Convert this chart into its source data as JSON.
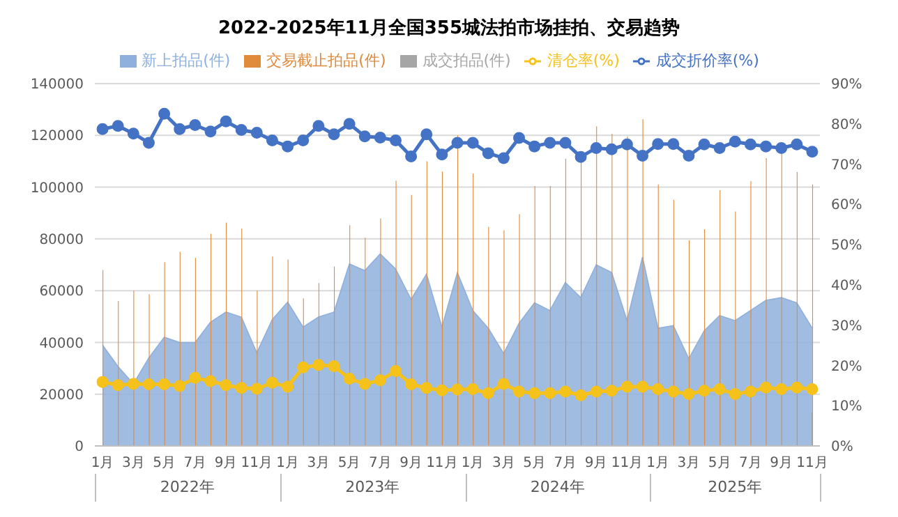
{
  "chart_data": {
    "type": "bar",
    "title": "2022-2025年11月全国355城法拍市场挂拍、交易趋势",
    "categories": [
      "1月",
      null,
      "3月",
      null,
      "5月",
      null,
      "7月",
      null,
      "9月",
      null,
      "11月",
      null,
      "1月",
      null,
      "3月",
      null,
      "5月",
      null,
      "7月",
      null,
      "9月",
      null,
      "11月",
      null,
      "1月",
      null,
      "3月",
      null,
      "5月",
      null,
      "7月",
      null,
      "9月",
      null,
      "11月",
      null,
      "1月",
      null,
      "3月",
      null,
      "5月",
      null,
      "7月",
      null,
      "9月",
      null,
      "11月"
    ],
    "annotations": [
      "2022年",
      "2023年",
      "2024年",
      "2025年"
    ],
    "series": [
      {
        "name": "新上拍品(件)",
        "type": "area",
        "color": "#8fb0dc",
        "values": [
          39000,
          30700,
          24000,
          34000,
          42000,
          40000,
          40000,
          47800,
          51700,
          49800,
          36000,
          48800,
          55600,
          45900,
          49800,
          51700,
          70300,
          67800,
          74200,
          68300,
          56600,
          66400,
          45900,
          67000,
          52300,
          45500,
          35700,
          47400,
          55300,
          52300,
          63100,
          57300,
          70000,
          67000,
          48400,
          73000,
          45500,
          46500,
          33700,
          44500,
          50400,
          48400,
          52300,
          56300,
          57300,
          55300,
          45500
        ]
      },
      {
        "name": "交易截止拍品(件)",
        "color": "#e08a3c",
        "values": [
          68000,
          56000,
          60000,
          58600,
          71000,
          75000,
          72600,
          82000,
          86300,
          84000,
          60000,
          73200,
          72000,
          57000,
          62900,
          69300,
          85300,
          80400,
          87900,
          102500,
          97000,
          110000,
          106000,
          120000,
          105300,
          84700,
          83300,
          89600,
          100400,
          100400,
          111000,
          110200,
          123500,
          120600,
          119600,
          126300,
          101000,
          95100,
          79400,
          83700,
          98800,
          90600,
          102400,
          111200,
          113000,
          105900,
          101000
        ]
      },
      {
        "name": "成交拍品(件)",
        "color": "#a6a6a6",
        "values": [
          null,
          null,
          null,
          null,
          null,
          null,
          null,
          null,
          null,
          null,
          null,
          null,
          null,
          null,
          null,
          null,
          null,
          null,
          null,
          null,
          null,
          null,
          null,
          null,
          null,
          null,
          null,
          null,
          null,
          null,
          null,
          null,
          null,
          null,
          null,
          null,
          null,
          null,
          null,
          null,
          null,
          null,
          null,
          null,
          null,
          null,
          13000
        ]
      },
      {
        "name": "清仓率(%)",
        "type": "line",
        "axis": "y2",
        "marker": "circle",
        "color": "#f5c21b",
        "values": [
          15.9,
          15.1,
          15.4,
          15.3,
          15.3,
          14.9,
          16.9,
          16.1,
          15.1,
          14.4,
          14.2,
          15.7,
          14.7,
          19.5,
          20.1,
          19.8,
          16.7,
          15.4,
          16.3,
          18.6,
          15.3,
          14.4,
          13.8,
          14.0,
          14.1,
          13.1,
          15.4,
          13.5,
          13.1,
          13.1,
          13.5,
          12.6,
          13.5,
          13.7,
          14.7,
          14.7,
          14.1,
          13.5,
          12.9,
          13.7,
          14.1,
          12.9,
          13.5,
          14.5,
          14.1,
          14.5,
          14.1
        ]
      },
      {
        "name": "成交折价率(%)",
        "type": "line",
        "axis": "y2",
        "marker": "circle",
        "color": "#4472c4",
        "values": [
          78.7,
          79.5,
          77.6,
          75.3,
          82.5,
          78.7,
          79.7,
          78.1,
          80.6,
          78.5,
          77.8,
          75.9,
          74.4,
          75.9,
          79.5,
          77.4,
          80.0,
          76.9,
          76.6,
          75.9,
          71.9,
          77.4,
          72.4,
          75.3,
          75.3,
          72.7,
          71.5,
          76.5,
          74.4,
          75.3,
          75.3,
          71.8,
          74.0,
          73.7,
          74.9,
          72.1,
          75.0,
          75.0,
          72.1,
          74.9,
          74.0,
          75.6,
          74.9,
          74.4,
          74.0,
          74.9,
          73.1
        ]
      }
    ],
    "ylim": [
      0,
      140000
    ],
    "yticks": [
      0,
      20000,
      40000,
      60000,
      80000,
      100000,
      120000,
      140000
    ],
    "y2lim": [
      0,
      90
    ],
    "y2ticks": [
      {
        "value": 0,
        "label": "0%"
      },
      {
        "value": 10,
        "label": "10%"
      },
      {
        "value": 20,
        "label": "20%"
      },
      {
        "value": 30,
        "label": "30%"
      },
      {
        "value": 40,
        "label": "40%"
      },
      {
        "value": 50,
        "label": "50%"
      },
      {
        "value": 60,
        "label": "60%"
      },
      {
        "value": 70,
        "label": "70%"
      },
      {
        "value": 80,
        "label": "80%"
      },
      {
        "value": 90,
        "label": "90%"
      }
    ],
    "grid": "y",
    "legend": "top"
  }
}
